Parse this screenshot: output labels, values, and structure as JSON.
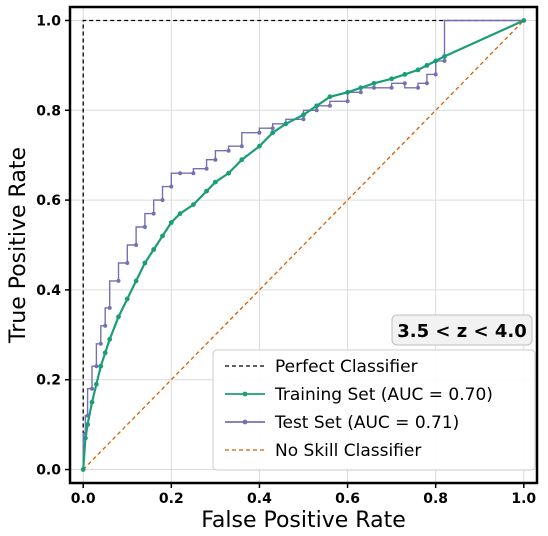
{
  "chart_data": {
    "type": "line",
    "xlabel": "False Positive Rate",
    "ylabel": "True Positive Rate",
    "xlim": [
      -0.03,
      1.03
    ],
    "ylim": [
      -0.03,
      1.03
    ],
    "x_ticks": [
      "0.0",
      "0.2",
      "0.4",
      "0.6",
      "0.8",
      "1.0"
    ],
    "y_ticks": [
      "0.0",
      "0.2",
      "0.4",
      "0.6",
      "0.8",
      "1.0"
    ],
    "grid": true,
    "legend_position": "lower-right",
    "annotation": "3.5 < z < 4.0",
    "series": [
      {
        "name": "Perfect Classifier",
        "color": "#000000",
        "style": "dashed",
        "x": [
          0.0,
          0.0,
          1.0
        ],
        "y": [
          0.0,
          1.0,
          1.0
        ]
      },
      {
        "name": "Training Set (AUC = 0.70)",
        "color": "#1b9e77",
        "style": "solid-markers",
        "x": [
          0.0,
          0.005,
          0.01,
          0.02,
          0.03,
          0.04,
          0.05,
          0.06,
          0.08,
          0.1,
          0.12,
          0.14,
          0.16,
          0.18,
          0.2,
          0.22,
          0.25,
          0.28,
          0.3,
          0.33,
          0.36,
          0.4,
          0.43,
          0.46,
          0.5,
          0.53,
          0.56,
          0.6,
          0.63,
          0.66,
          0.7,
          0.73,
          0.76,
          0.78,
          0.8,
          0.82,
          1.0
        ],
        "y": [
          0.0,
          0.07,
          0.1,
          0.15,
          0.19,
          0.23,
          0.26,
          0.29,
          0.34,
          0.38,
          0.42,
          0.46,
          0.49,
          0.52,
          0.55,
          0.57,
          0.59,
          0.62,
          0.64,
          0.66,
          0.69,
          0.72,
          0.75,
          0.77,
          0.79,
          0.81,
          0.83,
          0.84,
          0.85,
          0.86,
          0.87,
          0.88,
          0.89,
          0.9,
          0.91,
          0.92,
          1.0
        ]
      },
      {
        "name": "Test Set (AUC = 0.71)",
        "color": "#7570b3",
        "style": "step-markers",
        "x": [
          0.0,
          0.005,
          0.01,
          0.02,
          0.03,
          0.04,
          0.05,
          0.06,
          0.08,
          0.1,
          0.12,
          0.14,
          0.16,
          0.18,
          0.2,
          0.22,
          0.25,
          0.28,
          0.3,
          0.33,
          0.36,
          0.4,
          0.43,
          0.46,
          0.5,
          0.53,
          0.56,
          0.6,
          0.63,
          0.66,
          0.7,
          0.73,
          0.76,
          0.78,
          0.8,
          0.82,
          1.0
        ],
        "y": [
          0.0,
          0.08,
          0.12,
          0.18,
          0.23,
          0.28,
          0.32,
          0.36,
          0.42,
          0.46,
          0.5,
          0.54,
          0.57,
          0.6,
          0.63,
          0.66,
          0.66,
          0.67,
          0.69,
          0.71,
          0.72,
          0.75,
          0.76,
          0.77,
          0.78,
          0.8,
          0.81,
          0.82,
          0.84,
          0.85,
          0.85,
          0.86,
          0.85,
          0.86,
          0.88,
          0.91,
          1.0
        ]
      },
      {
        "name": "No Skill Classifier",
        "color": "#d95f02",
        "style": "dashed",
        "x": [
          0.0,
          1.0
        ],
        "y": [
          0.0,
          1.0
        ]
      }
    ]
  }
}
